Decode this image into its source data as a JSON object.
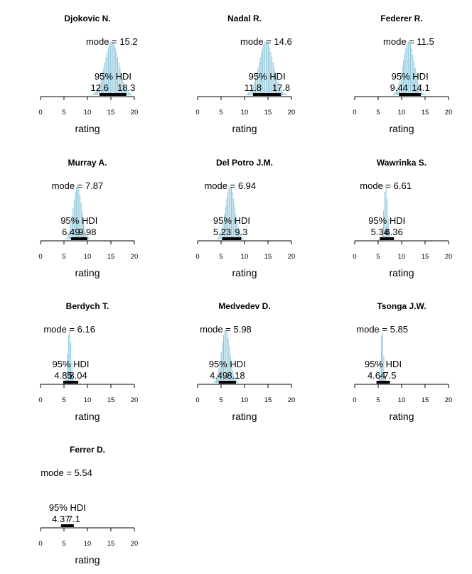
{
  "chart_data": {
    "type": "histogram",
    "xlim": [
      0,
      20
    ],
    "x_ticks": [
      "0",
      "5",
      "10",
      "15",
      "20"
    ],
    "xlabel": "rating",
    "mode_label": "mode",
    "hdi_label": "95% HDI",
    "bar_color": "#87c4d8",
    "panels": [
      {
        "title": "Djokovic N.",
        "mode": 15.2,
        "mode_text": "15.2",
        "hdi": [
          12.6,
          18.3
        ],
        "hdi_text": [
          "12.6",
          "18.3"
        ],
        "sd": 1.5
      },
      {
        "title": "Nadal R.",
        "mode": 14.6,
        "mode_text": "14.6",
        "hdi": [
          11.8,
          17.8
        ],
        "hdi_text": [
          "11.8",
          "17.8"
        ],
        "sd": 1.5
      },
      {
        "title": "Federer R.",
        "mode": 11.5,
        "mode_text": "11.5",
        "hdi": [
          9.44,
          14.1
        ],
        "hdi_text": [
          "9.44",
          "14.1"
        ],
        "sd": 1.2
      },
      {
        "title": "Murray A.",
        "mode": 7.87,
        "mode_text": "7.87",
        "hdi": [
          6.49,
          9.98
        ],
        "hdi_text": [
          "6.49",
          "9.98"
        ],
        "sd": 0.9
      },
      {
        "title": "Del Potro J.M.",
        "mode": 6.94,
        "mode_text": "6.94",
        "hdi": [
          5.23,
          9.3
        ],
        "hdi_text": [
          "5.23",
          "9.3"
        ],
        "sd": 1.0
      },
      {
        "title": "Wawrinka S.",
        "mode": 6.61,
        "mode_text": "6.61",
        "hdi": [
          5.34,
          8.36
        ],
        "hdi_text": [
          "5.34",
          "8.36"
        ],
        "sd": 0.4
      },
      {
        "title": "Berdych T.",
        "mode": 6.16,
        "mode_text": "6.16",
        "hdi": [
          4.85,
          8.04
        ],
        "hdi_text": [
          "4.85",
          "8.04"
        ],
        "sd": 0.4
      },
      {
        "title": "Medvedev D.",
        "mode": 5.98,
        "mode_text": "5.98",
        "hdi": [
          4.49,
          8.18
        ],
        "hdi_text": [
          "4.49",
          "8.18"
        ],
        "sd": 0.9
      },
      {
        "title": "Tsonga J.W.",
        "mode": 5.85,
        "mode_text": "5.85",
        "hdi": [
          4.64,
          7.5
        ],
        "hdi_text": [
          "4.64",
          "7.5"
        ],
        "sd": 0.3
      },
      {
        "title": "Ferrer D.",
        "mode": 5.54,
        "mode_text": "5.54",
        "hdi": [
          4.37,
          7.1
        ],
        "hdi_text": [
          "4.37",
          "7.1"
        ],
        "sd": 0.0
      }
    ]
  }
}
